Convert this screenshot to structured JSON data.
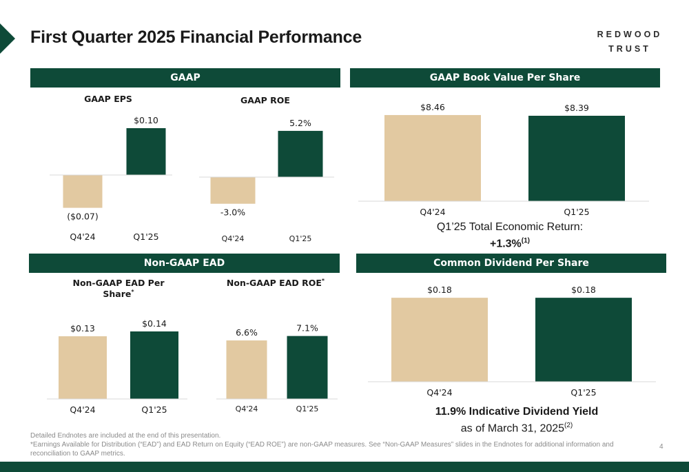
{
  "page": {
    "title": "First Quarter 2025 Financial Performance",
    "logo_line1": "REDWOOD",
    "logo_line2": "TRUST",
    "page_number": "4"
  },
  "colors": {
    "prior_quarter": "#e2c9a1",
    "current_quarter": "#0e4a38",
    "banner": "#0e4a38"
  },
  "sections": {
    "gaap": "GAAP",
    "bvps": "GAAP Book Value Per Share",
    "nongaap": "Non-GAAP EAD",
    "dividend": "Common Dividend Per Share"
  },
  "total_economic_return": {
    "label": "Q1’25 Total Economic Return:",
    "value": "+1.3%",
    "note": "(1)"
  },
  "dividend_yield": {
    "label": "11.9% Indicative Dividend Yield",
    "asof": "as of March 31, 2025",
    "note": "(2)"
  },
  "footnotes": {
    "line1": "Detailed Endnotes are included at the end of this presentation.",
    "line2": "*Earnings Available for Distribution (“EAD”) and EAD Return on Equity (“EAD ROE”) are non-GAAP measures. See “Non-GAAP Measures” slides in the Endnotes for additional information and reconciliation to GAAP metrics."
  },
  "chart_data": [
    {
      "id": "gaap-eps",
      "type": "bar",
      "title": "GAAP EPS",
      "categories": [
        "Q4'24",
        "Q1'25"
      ],
      "values": [
        -0.07,
        0.1
      ],
      "labels": [
        "($0.07)",
        "$0.10"
      ]
    },
    {
      "id": "gaap-roe",
      "type": "bar",
      "title": "GAAP ROE",
      "categories": [
        "Q4'24",
        "Q1'25"
      ],
      "values": [
        -3.0,
        5.2
      ],
      "labels": [
        "-3.0%",
        "5.2%"
      ]
    },
    {
      "id": "bvps",
      "type": "bar",
      "title": "",
      "categories": [
        "Q4'24",
        "Q1'25"
      ],
      "values": [
        8.46,
        8.39
      ],
      "labels": [
        "$8.46",
        "$8.39"
      ]
    },
    {
      "id": "ead-per-share",
      "type": "bar",
      "title": "Non-GAAP EAD Per Share",
      "title_mark": "*",
      "categories": [
        "Q4'24",
        "Q1'25"
      ],
      "values": [
        0.13,
        0.14
      ],
      "labels": [
        "$0.13",
        "$0.14"
      ]
    },
    {
      "id": "ead-roe",
      "type": "bar",
      "title": "Non-GAAP EAD ROE",
      "title_mark": "*",
      "categories": [
        "Q4'24",
        "Q1'25"
      ],
      "values": [
        6.6,
        7.1
      ],
      "labels": [
        "6.6%",
        "7.1%"
      ]
    },
    {
      "id": "dividend",
      "type": "bar",
      "title": "",
      "categories": [
        "Q4'24",
        "Q1'25"
      ],
      "values": [
        0.18,
        0.18
      ],
      "labels": [
        "$0.18",
        "$0.18"
      ]
    }
  ]
}
